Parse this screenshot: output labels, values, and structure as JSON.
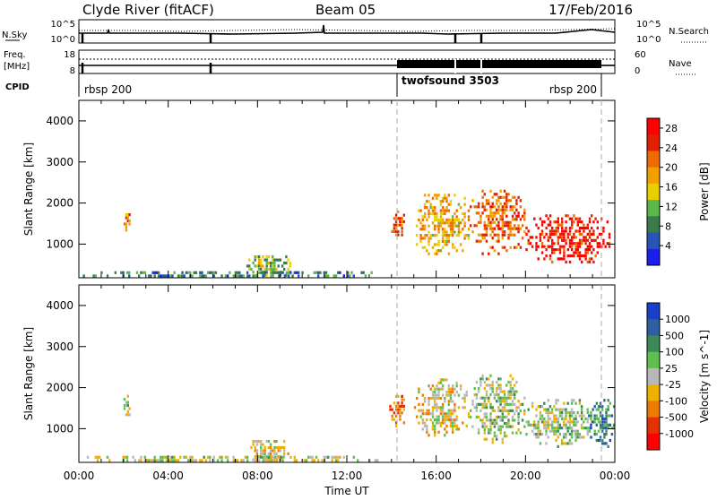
{
  "header": {
    "station": "Clyde River (fitACF)",
    "beam": "Beam 05",
    "date": "17/Feb/2016"
  },
  "status_panels": {
    "nsky_label": "N.Sky",
    "nsky_top_tick": "10^5",
    "nsky_bottom_tick": "10^0",
    "nsearch_label": "N.Search",
    "nsearch_top_tick": "10^5",
    "nsearch_bottom_tick": "10^0",
    "freq_label_1": "Freq.",
    "freq_label_2": "[MHz]",
    "freq_top_tick": "18",
    "freq_bottom_tick": "8",
    "nave_label": "Nave",
    "nave_top_tick": "60",
    "nave_bottom_tick": "0",
    "cpid_label": "CPID",
    "cpid_segments": [
      {
        "name": "rbsp 200",
        "start_hour": 0,
        "end_hour": 14.2
      },
      {
        "name": "twofsound 3503",
        "start_hour": 14.2,
        "end_hour": 23.2
      },
      {
        "name": "rbsp 200",
        "start_hour": 23.2,
        "end_hour": 24
      }
    ]
  },
  "chart_data": [
    {
      "type": "heatmap",
      "quantity": "Power",
      "ylabel": "Slant Range [km]",
      "xlabel": "Time UT",
      "xlim_hours": [
        0,
        24
      ],
      "ylim_km": [
        180,
        4500
      ],
      "x_ticks": [
        "00:00",
        "04:00",
        "08:00",
        "12:00",
        "16:00",
        "20:00",
        "00:00"
      ],
      "y_ticks": [
        1000,
        2000,
        3000,
        4000
      ],
      "colorbar_label": "Power [dB]",
      "colorbar_ticks": [
        4,
        8,
        12,
        16,
        20,
        24,
        28
      ],
      "colorbar_range": [
        0,
        30
      ],
      "colors": [
        "#1d1dee",
        "#2855b5",
        "#3b7a4a",
        "#5ab84a",
        "#e8d000",
        "#f2a000",
        "#ef6a00",
        "#e02000",
        "#ff0000"
      ],
      "blobs": [
        {
          "t0": 2.0,
          "t1": 2.3,
          "r0": 1300,
          "r1": 1900,
          "value": 20
        },
        {
          "t0": 13.9,
          "t1": 14.6,
          "r0": 1100,
          "r1": 1900,
          "value": 22
        },
        {
          "t0": 15.0,
          "t1": 17.5,
          "r0": 800,
          "r1": 2300,
          "value": 18
        },
        {
          "t0": 17.5,
          "t1": 20.0,
          "r0": 800,
          "r1": 2400,
          "value": 22
        },
        {
          "t0": 20.0,
          "t1": 23.8,
          "r0": 600,
          "r1": 1800,
          "value": 27
        },
        {
          "t0": 7.5,
          "t1": 9.5,
          "r0": 200,
          "r1": 800,
          "value": 12
        },
        {
          "t0": 0.0,
          "t1": 13.5,
          "r0": 180,
          "r1": 420,
          "value": 8
        }
      ]
    },
    {
      "type": "heatmap",
      "quantity": "Velocity",
      "ylabel": "Slant Range [km]",
      "xlabel": "Time UT",
      "xlim_hours": [
        0,
        24
      ],
      "ylim_km": [
        180,
        4500
      ],
      "x_ticks": [
        "00:00",
        "04:00",
        "08:00",
        "12:00",
        "16:00",
        "20:00",
        "00:00"
      ],
      "y_ticks": [
        1000,
        2000,
        3000,
        4000
      ],
      "colorbar_label": "Velocity [m s^-1]",
      "colorbar_ticks": [
        1000,
        500,
        100,
        25,
        -25,
        -100,
        -500,
        -1000
      ],
      "colorbar_range": [
        -1000,
        1000
      ],
      "colors": [
        "#1a3fcf",
        "#2f5fa0",
        "#3a8a5a",
        "#5fc050",
        "#b8b8b8",
        "#f0b000",
        "#ef7a00",
        "#e53000",
        "#ff0000"
      ],
      "blobs": [
        {
          "t0": 2.0,
          "t1": 2.3,
          "r0": 1300,
          "r1": 1900,
          "value": 100
        },
        {
          "t0": 13.9,
          "t1": 14.6,
          "r0": 1100,
          "r1": 1900,
          "value": -500
        },
        {
          "t0": 15.0,
          "t1": 17.5,
          "r0": 800,
          "r1": 2300,
          "value": -100
        },
        {
          "t0": 17.5,
          "t1": 20.0,
          "r0": 700,
          "r1": 2400,
          "value": 100
        },
        {
          "t0": 20.0,
          "t1": 23.0,
          "r0": 600,
          "r1": 1800,
          "value": 100
        },
        {
          "t0": 22.8,
          "t1": 24.0,
          "r0": 600,
          "r1": 1800,
          "value": 500
        },
        {
          "t0": 7.5,
          "t1": 9.5,
          "r0": 200,
          "r1": 800,
          "value": -100
        },
        {
          "t0": 0.0,
          "t1": 13.5,
          "r0": 180,
          "r1": 420,
          "value": 25
        }
      ]
    }
  ]
}
